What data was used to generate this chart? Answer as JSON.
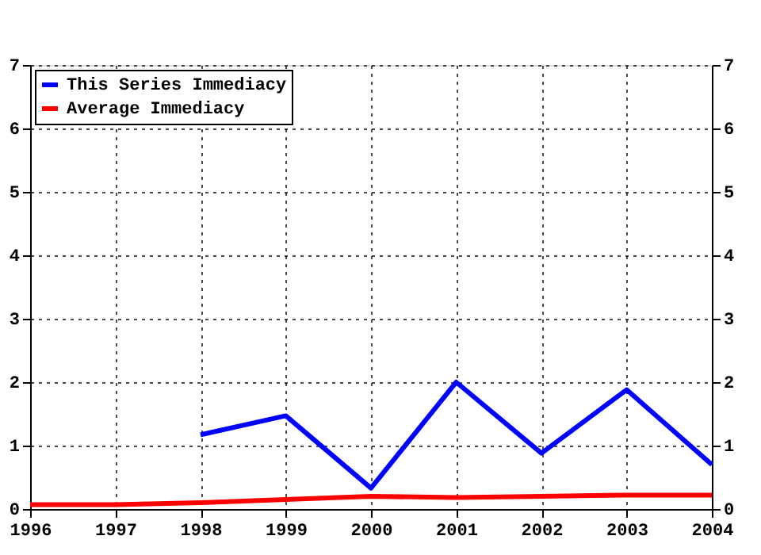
{
  "chart_data": {
    "type": "line",
    "x": [
      1996,
      1997,
      1998,
      1999,
      2000,
      2001,
      2002,
      2003,
      2004
    ],
    "series": [
      {
        "name": "This Series Immediacy",
        "color": "#0000ff",
        "values": [
          null,
          null,
          1.17,
          1.47,
          0.33,
          2.0,
          0.88,
          1.88,
          0.7
        ]
      },
      {
        "name": "Average Immediacy",
        "color": "#ff0000",
        "values": [
          0.07,
          0.07,
          0.1,
          0.15,
          0.2,
          0.18,
          0.2,
          0.22,
          0.22
        ]
      }
    ],
    "xlim": [
      1996,
      2004
    ],
    "xticks": [
      1996,
      1997,
      1998,
      1999,
      2000,
      2001,
      2002,
      2003,
      2004
    ],
    "ylim": [
      0,
      7
    ],
    "yticks": [
      0,
      1,
      2,
      3,
      4,
      5,
      6,
      7
    ],
    "y2lim": [
      0,
      7
    ],
    "y2ticks": [
      0,
      1,
      2,
      3,
      4,
      5,
      6,
      7
    ],
    "grid": true,
    "legend": "top left",
    "marker": "none",
    "line_style": "solid"
  }
}
